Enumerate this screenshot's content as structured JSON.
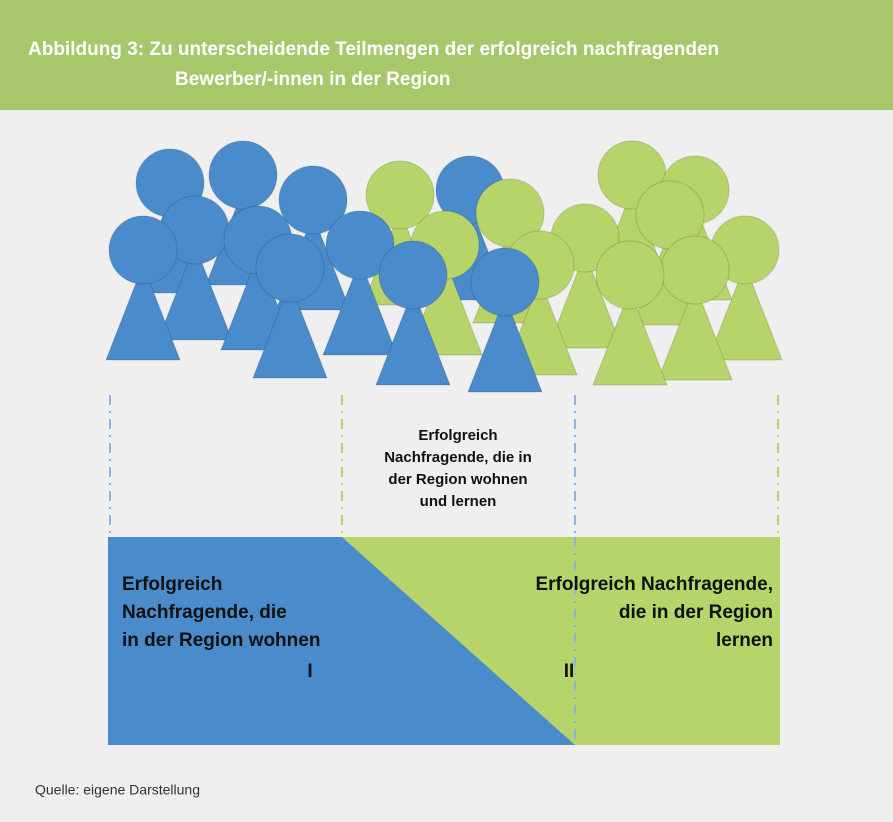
{
  "header": {
    "title_line1": "Abbildung 3: Zu unterscheidende Teilmengen der erfolgreich nachfragenden",
    "title_line2": "Bewerber/-innen in der Region"
  },
  "middle_label": {
    "lines": [
      "Erfolgreich",
      "Nachfragende, die in",
      "der Region wohnen",
      "und lernen"
    ]
  },
  "left_box": {
    "lines": [
      "Erfolgreich",
      "Nachfragende, die",
      "in der Region wohnen"
    ],
    "numeral": "I"
  },
  "right_box": {
    "lines": [
      "Erfolgreich Nachfragende,",
      "die in der Region",
      "lernen"
    ],
    "numeral": "II"
  },
  "source": "Quelle: eigene Darstellung"
}
